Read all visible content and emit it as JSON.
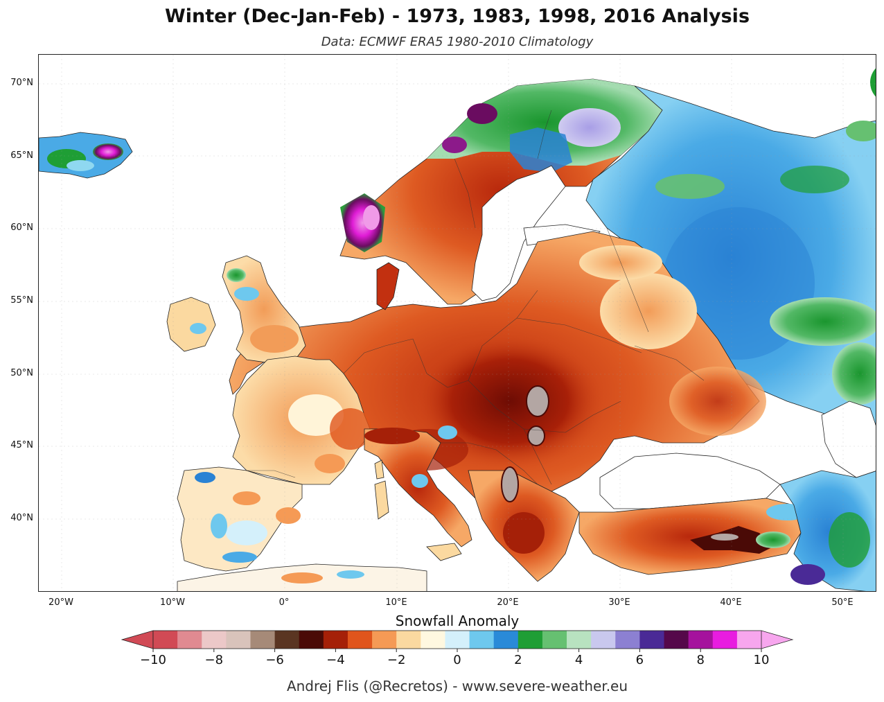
{
  "header": {
    "title": "Winter (Dec-Jan-Feb) - 1973, 1983, 1998, 2016 Analysis",
    "subtitle": "Data: ECMWF ERA5   1980-2010 Climatology"
  },
  "map": {
    "lat_labels": [
      "70°N",
      "65°N",
      "60°N",
      "55°N",
      "50°N",
      "45°N",
      "40°N"
    ],
    "lon_labels": [
      "20°W",
      "10°W",
      "0°",
      "10°E",
      "20°E",
      "30°E",
      "40°E",
      "50°E"
    ],
    "features": [
      "iceland",
      "norway",
      "sweden",
      "finland",
      "russia",
      "british-isles",
      "iberia",
      "france",
      "germany",
      "poland",
      "ukraine",
      "italy",
      "balkans",
      "turkey",
      "caucasus",
      "north-africa"
    ]
  },
  "colorbar": {
    "title": "Snowfall Anomaly",
    "ticks": [
      "−10",
      "−8",
      "−6",
      "−4",
      "−2",
      "0",
      "2",
      "4",
      "6",
      "8",
      "10"
    ],
    "colors": [
      "#d14a55",
      "#e08a91",
      "#ecc8c8",
      "#d9c3bb",
      "#a68a78",
      "#5a3522",
      "#4a0a06",
      "#a52008",
      "#e0551c",
      "#f59a55",
      "#fbd9a0",
      "#fff8e0",
      "#d4f0fb",
      "#6ec8ee",
      "#2a8ad8",
      "#1f9e35",
      "#66c071",
      "#b8e2c0",
      "#c9c8ee",
      "#8c80d2",
      "#4a2a96",
      "#55084a",
      "#a5129d",
      "#e81ce0",
      "#f7a6ee"
    ],
    "min_arrow_color": "#d14a55",
    "max_arrow_color": "#f7a6ee"
  },
  "footer": {
    "credit": "Andrej Flis (@Recretos) - www.severe-weather.eu"
  }
}
